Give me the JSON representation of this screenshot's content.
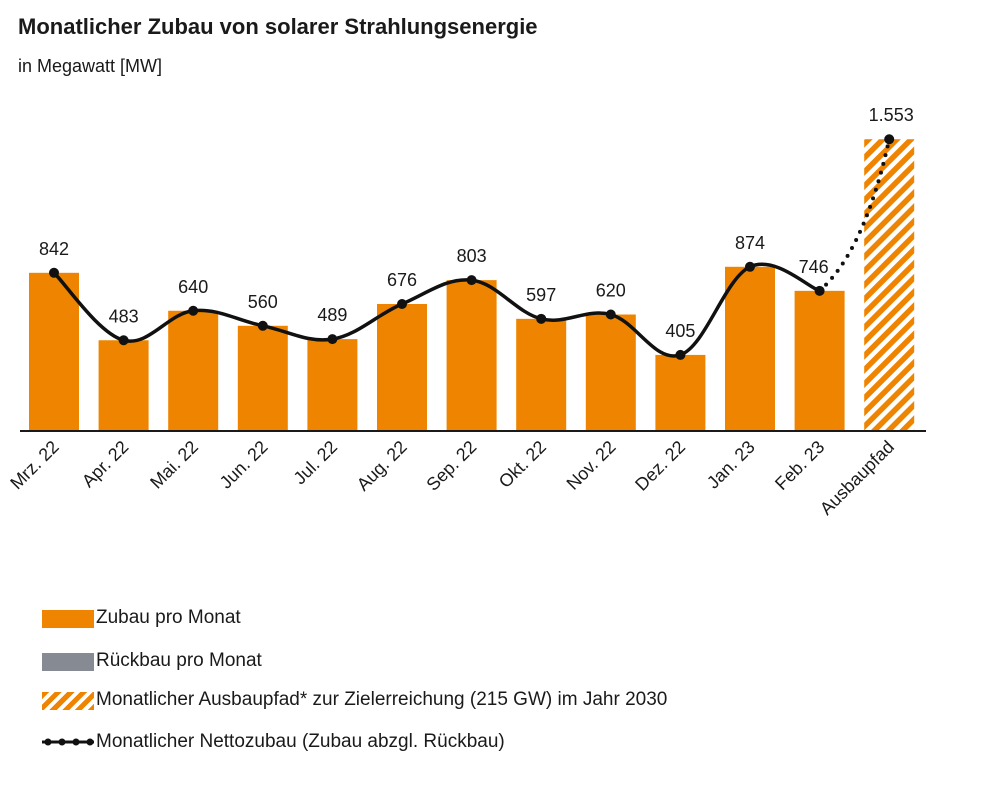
{
  "title": "Monatlicher Zubau von solarer Strahlungsenergie",
  "subtitle": "in Megawatt [MW]",
  "chart_data": {
    "type": "bar",
    "categories": [
      "Mrz. 22",
      "Apr. 22",
      "Mai. 22",
      "Jun. 22",
      "Jul. 22",
      "Aug. 22",
      "Sep. 22",
      "Okt. 22",
      "Nov. 22",
      "Dez. 22",
      "Jan. 23",
      "Feb. 23",
      "Ausbaupfad"
    ],
    "series": [
      {
        "name": "Zubau pro Monat",
        "type": "bar",
        "values": [
          842,
          483,
          640,
          560,
          489,
          676,
          803,
          597,
          620,
          405,
          874,
          746,
          null
        ],
        "color": "#ee8400"
      },
      {
        "name": "Rückbau pro Monat",
        "type": "bar",
        "values": [
          null,
          null,
          null,
          null,
          null,
          null,
          null,
          null,
          null,
          null,
          null,
          null,
          null
        ],
        "color": "#858a93"
      },
      {
        "name": "Monatlicher Ausbaupfad* zur Zielerreichung (215 GW) im Jahr 2030",
        "type": "bar-hatched",
        "values": [
          null,
          null,
          null,
          null,
          null,
          null,
          null,
          null,
          null,
          null,
          null,
          null,
          1553
        ],
        "color": "#ee8400"
      },
      {
        "name": "Monatlicher Nettozubau (Zubau abzgl. Rückbau)",
        "type": "line",
        "values": [
          842,
          483,
          640,
          560,
          489,
          676,
          803,
          597,
          620,
          405,
          874,
          746,
          1553
        ],
        "color": "#111111"
      }
    ],
    "value_labels": [
      "842",
      "483",
      "640",
      "560",
      "489",
      "676",
      "803",
      "597",
      "620",
      "405",
      "874",
      "746",
      "1.553"
    ],
    "ylim": [
      0,
      1650
    ],
    "grid": false,
    "legend_position": "bottom"
  },
  "legend": [
    {
      "label": "Zubau pro Monat",
      "swatch": "bar-orange"
    },
    {
      "label": "Rückbau pro Monat",
      "swatch": "bar-grey"
    },
    {
      "label": "Monatlicher Ausbaupfad* zur Zielerreichung (215 GW) im Jahr 2030",
      "swatch": "bar-hatched"
    },
    {
      "label": "Monatlicher Nettozubau (Zubau abzgl. Rückbau)",
      "swatch": "line-dotted"
    }
  ]
}
